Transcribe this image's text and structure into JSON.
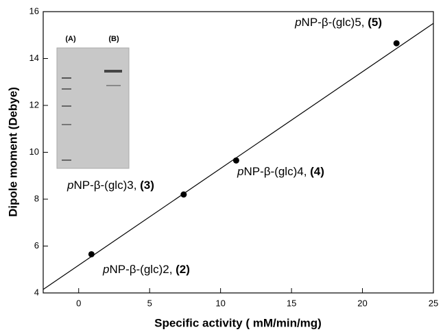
{
  "chart_data": {
    "type": "scatter",
    "xlabel": "Specific activity ( mM/min/mg)",
    "ylabel": "Dipole moment (Debye)",
    "x": [
      0.9,
      7.4,
      11.1,
      22.4
    ],
    "series": [
      {
        "color": "#000000",
        "values": [
          5.65,
          8.2,
          9.65,
          14.65
        ]
      }
    ],
    "fit_line": {
      "x": [
        -2.5,
        25
      ],
      "y": [
        4.15,
        15.5
      ]
    },
    "xlim": [
      -2.5,
      25
    ],
    "xticks": [
      0,
      5,
      10,
      15,
      20,
      25
    ],
    "ylim": [
      4,
      16
    ],
    "yticks": [
      4,
      6,
      8,
      10,
      12,
      14,
      16
    ],
    "annotations": [
      {
        "italic": "p",
        "text": "NP-β-(glc)2, ",
        "bold": "(2)"
      },
      {
        "italic": "p",
        "text": "NP-β-(glc)3, ",
        "bold": "(3)"
      },
      {
        "italic": "p",
        "text": "NP-β-(glc)4, ",
        "bold": "(4)"
      },
      {
        "italic": "p",
        "text": "NP-β-(glc)5, ",
        "bold": "(5)"
      }
    ],
    "inset_labels": [
      "(A)",
      "(B)"
    ]
  }
}
